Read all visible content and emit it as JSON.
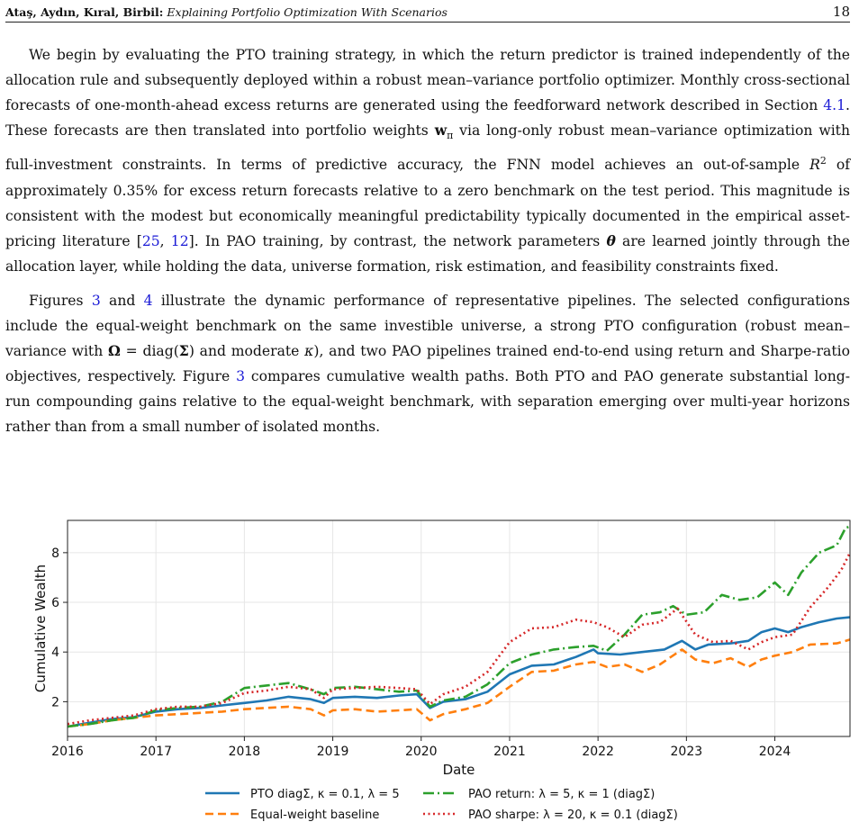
{
  "header": {
    "authors": "Ataş, Aydın, Kıral, Birbil:",
    "title": "Explaining Portfolio Optimization With Scenarios",
    "page": "18"
  },
  "paragraphs": {
    "p1": [
      {
        "t": "We begin by evaluating the PTO training strategy, in which the return predictor is trained independently of the allocation rule and subsequently deployed within a robust mean–variance portfolio optimizer. Monthly cross-sectional forecasts of one-month-ahead excess returns are generated using the feedforward network described in Section "
      },
      {
        "t": "4.1",
        "ref": true
      },
      {
        "t": ". These forecasts are then translated into portfolio weights "
      },
      {
        "t": "w",
        "bold": true
      },
      {
        "t": "π",
        "sub": true
      },
      {
        "t": " via long-only robust mean–variance optimization with full-investment constraints. In terms of predictive accuracy, the FNN model achieves an out-of-sample "
      },
      {
        "t": "R",
        "ital": true
      },
      {
        "t": "2",
        "sup": true
      },
      {
        "t": " of approximately 0.35% for excess return forecasts relative to a zero benchmark on the test period. This magnitude is consistent with the modest but economically meaningful predictability typically documented in the empirical asset-pricing literature ["
      },
      {
        "t": "25",
        "ref": true
      },
      {
        "t": ", "
      },
      {
        "t": "12",
        "ref": true
      },
      {
        "t": "]. In PAO training, by contrast, the network parameters "
      },
      {
        "t": "θ",
        "bold": true,
        "ital": true
      },
      {
        "t": " are learned jointly through the allocation layer, while holding the data, universe formation, risk estimation, and feasibility constraints fixed."
      }
    ],
    "p2": [
      {
        "t": "Figures "
      },
      {
        "t": "3",
        "ref": true
      },
      {
        "t": " and "
      },
      {
        "t": "4",
        "ref": true
      },
      {
        "t": " illustrate the dynamic performance of representative pipelines. The selected configurations include the equal-weight benchmark on the same investible universe, a strong PTO configuration (robust mean–variance with "
      },
      {
        "t": "Ω",
        "bold": true
      },
      {
        "t": " = diag("
      },
      {
        "t": "Σ",
        "bold": true
      },
      {
        "t": ") and moderate "
      },
      {
        "t": "κ",
        "ital": true
      },
      {
        "t": "), and two PAO pipelines trained end-to-end using return and Sharpe-ratio objectives, respectively. Figure "
      },
      {
        "t": "3",
        "ref": true
      },
      {
        "t": " compares cumulative wealth paths. Both PTO and PAO generate substantial long-run compounding gains relative to the equal-weight benchmark, with separation emerging over multi-year horizons rather than from a small number of isolated months."
      }
    ]
  },
  "chart_data": {
    "type": "line",
    "xlabel": "Date",
    "ylabel": "Cumulative Wealth",
    "xlim": [
      2016.0,
      2024.85
    ],
    "ylim": [
      0.6,
      9.3
    ],
    "xticks": [
      "2016",
      "2017",
      "2018",
      "2019",
      "2020",
      "2021",
      "2022",
      "2023",
      "2024"
    ],
    "yticks": [
      2,
      4,
      6,
      8
    ],
    "grid": true,
    "legend": "below",
    "series": [
      {
        "name": "PTO diagΣ, κ = 0.1, λ = 5",
        "color": "#1f77b4",
        "style": "solid",
        "points": [
          [
            2016.0,
            1.0
          ],
          [
            2016.25,
            1.15
          ],
          [
            2016.5,
            1.3
          ],
          [
            2016.75,
            1.38
          ],
          [
            2017.0,
            1.6
          ],
          [
            2017.25,
            1.7
          ],
          [
            2017.5,
            1.75
          ],
          [
            2017.75,
            1.85
          ],
          [
            2018.0,
            1.95
          ],
          [
            2018.25,
            2.05
          ],
          [
            2018.5,
            2.2
          ],
          [
            2018.75,
            2.1
          ],
          [
            2018.9,
            1.95
          ],
          [
            2019.0,
            2.15
          ],
          [
            2019.25,
            2.2
          ],
          [
            2019.5,
            2.15
          ],
          [
            2019.75,
            2.25
          ],
          [
            2019.95,
            2.3
          ],
          [
            2020.1,
            1.75
          ],
          [
            2020.25,
            2.0
          ],
          [
            2020.5,
            2.1
          ],
          [
            2020.75,
            2.4
          ],
          [
            2021.0,
            3.1
          ],
          [
            2021.25,
            3.45
          ],
          [
            2021.5,
            3.5
          ],
          [
            2021.75,
            3.8
          ],
          [
            2021.95,
            4.1
          ],
          [
            2022.0,
            3.95
          ],
          [
            2022.25,
            3.9
          ],
          [
            2022.5,
            4.0
          ],
          [
            2022.75,
            4.1
          ],
          [
            2022.95,
            4.45
          ],
          [
            2023.1,
            4.1
          ],
          [
            2023.25,
            4.3
          ],
          [
            2023.5,
            4.35
          ],
          [
            2023.7,
            4.45
          ],
          [
            2023.85,
            4.8
          ],
          [
            2024.0,
            4.95
          ],
          [
            2024.15,
            4.8
          ],
          [
            2024.3,
            5.0
          ],
          [
            2024.5,
            5.2
          ],
          [
            2024.7,
            5.35
          ],
          [
            2024.85,
            5.4
          ]
        ]
      },
      {
        "name": "Equal-weight baseline",
        "color": "#ff7f0e",
        "style": "dashed",
        "points": [
          [
            2016.0,
            1.0
          ],
          [
            2016.25,
            1.1
          ],
          [
            2016.5,
            1.25
          ],
          [
            2016.75,
            1.35
          ],
          [
            2017.0,
            1.45
          ],
          [
            2017.25,
            1.5
          ],
          [
            2017.5,
            1.55
          ],
          [
            2017.75,
            1.6
          ],
          [
            2018.0,
            1.7
          ],
          [
            2018.25,
            1.75
          ],
          [
            2018.5,
            1.8
          ],
          [
            2018.75,
            1.7
          ],
          [
            2018.9,
            1.45
          ],
          [
            2019.0,
            1.65
          ],
          [
            2019.25,
            1.7
          ],
          [
            2019.5,
            1.6
          ],
          [
            2019.75,
            1.65
          ],
          [
            2019.95,
            1.7
          ],
          [
            2020.1,
            1.25
          ],
          [
            2020.25,
            1.5
          ],
          [
            2020.5,
            1.7
          ],
          [
            2020.75,
            1.95
          ],
          [
            2021.0,
            2.6
          ],
          [
            2021.25,
            3.2
          ],
          [
            2021.5,
            3.25
          ],
          [
            2021.75,
            3.5
          ],
          [
            2021.95,
            3.6
          ],
          [
            2022.1,
            3.4
          ],
          [
            2022.3,
            3.5
          ],
          [
            2022.5,
            3.2
          ],
          [
            2022.7,
            3.5
          ],
          [
            2022.95,
            4.1
          ],
          [
            2023.1,
            3.7
          ],
          [
            2023.3,
            3.55
          ],
          [
            2023.5,
            3.75
          ],
          [
            2023.7,
            3.4
          ],
          [
            2023.85,
            3.7
          ],
          [
            2024.0,
            3.85
          ],
          [
            2024.2,
            4.0
          ],
          [
            2024.4,
            4.3
          ],
          [
            2024.7,
            4.35
          ],
          [
            2024.85,
            4.5
          ]
        ]
      },
      {
        "name": "PAO return: λ = 5, κ = 1 (diagΣ)",
        "color": "#2ca02c",
        "style": "dashdot",
        "points": [
          [
            2016.0,
            1.0
          ],
          [
            2016.25,
            1.1
          ],
          [
            2016.5,
            1.25
          ],
          [
            2016.75,
            1.35
          ],
          [
            2017.0,
            1.65
          ],
          [
            2017.25,
            1.75
          ],
          [
            2017.5,
            1.8
          ],
          [
            2017.75,
            2.0
          ],
          [
            2018.0,
            2.55
          ],
          [
            2018.25,
            2.65
          ],
          [
            2018.5,
            2.75
          ],
          [
            2018.75,
            2.5
          ],
          [
            2018.9,
            2.3
          ],
          [
            2019.0,
            2.55
          ],
          [
            2019.25,
            2.6
          ],
          [
            2019.5,
            2.5
          ],
          [
            2019.75,
            2.4
          ],
          [
            2019.95,
            2.45
          ],
          [
            2020.1,
            1.8
          ],
          [
            2020.25,
            2.05
          ],
          [
            2020.5,
            2.2
          ],
          [
            2020.75,
            2.7
          ],
          [
            2021.0,
            3.55
          ],
          [
            2021.25,
            3.9
          ],
          [
            2021.5,
            4.1
          ],
          [
            2021.75,
            4.2
          ],
          [
            2021.95,
            4.25
          ],
          [
            2022.1,
            4.05
          ],
          [
            2022.3,
            4.7
          ],
          [
            2022.5,
            5.5
          ],
          [
            2022.7,
            5.6
          ],
          [
            2022.85,
            5.85
          ],
          [
            2023.0,
            5.5
          ],
          [
            2023.2,
            5.6
          ],
          [
            2023.4,
            6.3
          ],
          [
            2023.6,
            6.1
          ],
          [
            2023.8,
            6.2
          ],
          [
            2024.0,
            6.8
          ],
          [
            2024.15,
            6.3
          ],
          [
            2024.3,
            7.2
          ],
          [
            2024.5,
            8.0
          ],
          [
            2024.7,
            8.3
          ],
          [
            2024.8,
            9.0
          ],
          [
            2024.85,
            9.05
          ]
        ]
      },
      {
        "name": "PAO sharpe: λ = 20, κ = 0.1 (diagΣ)",
        "color": "#d62728",
        "style": "dotted",
        "points": [
          [
            2016.0,
            1.1
          ],
          [
            2016.25,
            1.25
          ],
          [
            2016.5,
            1.35
          ],
          [
            2016.75,
            1.45
          ],
          [
            2017.0,
            1.7
          ],
          [
            2017.25,
            1.8
          ],
          [
            2017.5,
            1.8
          ],
          [
            2017.75,
            1.95
          ],
          [
            2018.0,
            2.35
          ],
          [
            2018.25,
            2.45
          ],
          [
            2018.5,
            2.6
          ],
          [
            2018.75,
            2.5
          ],
          [
            2018.9,
            2.15
          ],
          [
            2019.0,
            2.5
          ],
          [
            2019.25,
            2.55
          ],
          [
            2019.5,
            2.6
          ],
          [
            2019.75,
            2.55
          ],
          [
            2019.95,
            2.5
          ],
          [
            2020.1,
            1.9
          ],
          [
            2020.25,
            2.3
          ],
          [
            2020.5,
            2.6
          ],
          [
            2020.75,
            3.2
          ],
          [
            2021.0,
            4.4
          ],
          [
            2021.25,
            4.95
          ],
          [
            2021.5,
            5.0
          ],
          [
            2021.75,
            5.3
          ],
          [
            2021.95,
            5.2
          ],
          [
            2022.1,
            5.0
          ],
          [
            2022.3,
            4.6
          ],
          [
            2022.5,
            5.1
          ],
          [
            2022.7,
            5.2
          ],
          [
            2022.9,
            5.75
          ],
          [
            2023.1,
            4.7
          ],
          [
            2023.3,
            4.4
          ],
          [
            2023.5,
            4.45
          ],
          [
            2023.7,
            4.1
          ],
          [
            2023.85,
            4.4
          ],
          [
            2024.0,
            4.6
          ],
          [
            2024.2,
            4.7
          ],
          [
            2024.4,
            5.8
          ],
          [
            2024.6,
            6.6
          ],
          [
            2024.75,
            7.3
          ],
          [
            2024.85,
            8.0
          ]
        ]
      }
    ]
  }
}
